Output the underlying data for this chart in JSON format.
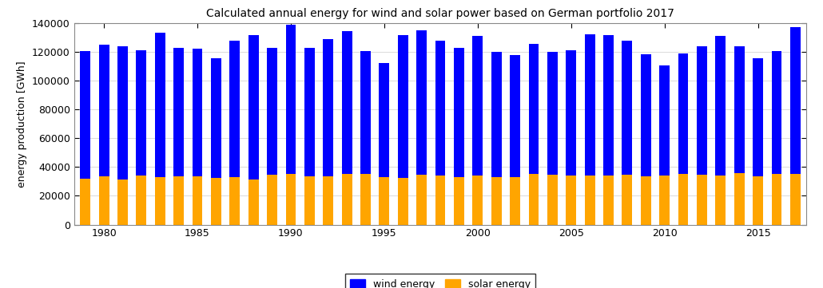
{
  "title": "Calculated annual energy for wind and solar power based on German portfolio 2017",
  "ylabel": "energy production [GWh]",
  "years": [
    1979,
    1980,
    1981,
    1982,
    1983,
    1984,
    1985,
    1986,
    1987,
    1988,
    1989,
    1990,
    1991,
    1992,
    1993,
    1994,
    1995,
    1996,
    1997,
    1998,
    1999,
    2000,
    2001,
    2002,
    2003,
    2004,
    2005,
    2006,
    2007,
    2008,
    2009,
    2010,
    2011,
    2012,
    2013,
    2014,
    2015,
    2016,
    2017
  ],
  "total": [
    120500,
    125000,
    124000,
    121000,
    133500,
    122500,
    122000,
    115500,
    127500,
    131500,
    123000,
    139000,
    123000,
    129000,
    134500,
    120500,
    112500,
    131500,
    135000,
    128000,
    123000,
    131000,
    120000,
    117500,
    125500,
    120000,
    121000,
    132000,
    131500,
    127500,
    118500,
    110500,
    119000,
    124000,
    131000,
    124000,
    115500,
    120500,
    137000
  ],
  "solar": [
    32000,
    33500,
    31500,
    34000,
    33000,
    33500,
    33500,
    32500,
    33000,
    31500,
    34500,
    35000,
    33500,
    33500,
    35000,
    35000,
    33000,
    32500,
    34500,
    34000,
    33000,
    34000,
    33000,
    33000,
    35500,
    34500,
    34000,
    34000,
    34000,
    34500,
    33500,
    34000,
    35000,
    34500,
    34000,
    36000,
    33500,
    35000,
    35000
  ],
  "wind_color": "#0000ff",
  "solar_color": "#ffa500",
  "background_color": "#ffffff",
  "facecolor": "#ffffff",
  "ylim": [
    0,
    140000
  ],
  "yticks": [
    0,
    20000,
    40000,
    60000,
    80000,
    100000,
    120000,
    140000
  ],
  "legend_labels": [
    "wind energy",
    "solar energy"
  ],
  "figsize": [
    10.3,
    3.61
  ],
  "dpi": 100,
  "title_fontsize": 10,
  "axis_fontsize": 9,
  "legend_fontsize": 9,
  "bar_width": 0.55
}
